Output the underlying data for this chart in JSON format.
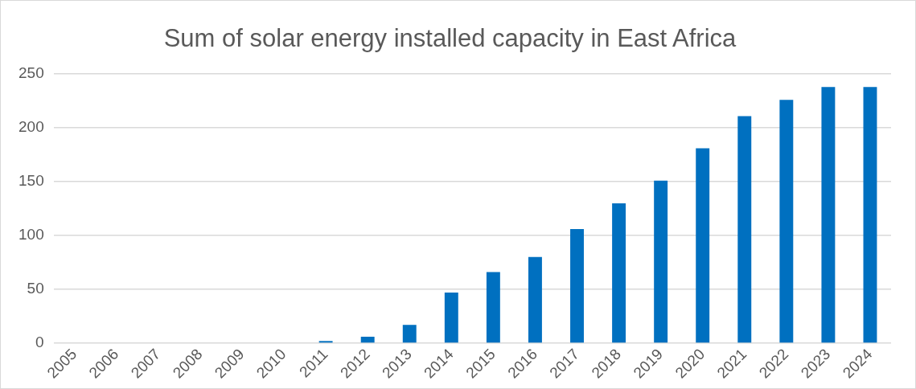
{
  "chart_data": {
    "type": "bar",
    "title": "Sum of solar energy installed capacity in East Africa",
    "categories": [
      "2005",
      "2006",
      "2007",
      "2008",
      "2009",
      "2010",
      "2011",
      "2012",
      "2013",
      "2014",
      "2015",
      "2016",
      "2017",
      "2018",
      "2019",
      "2020",
      "2021",
      "2022",
      "2023",
      "2024"
    ],
    "values": [
      0,
      0,
      0,
      0,
      0,
      0,
      2,
      6,
      17,
      47,
      66,
      80,
      106,
      130,
      151,
      181,
      211,
      226,
      238,
      238
    ],
    "color": "#0070c0",
    "ylim": [
      0,
      250
    ],
    "yticks": [
      0,
      50,
      100,
      150,
      200,
      250
    ],
    "grid": "y",
    "legend": false
  }
}
